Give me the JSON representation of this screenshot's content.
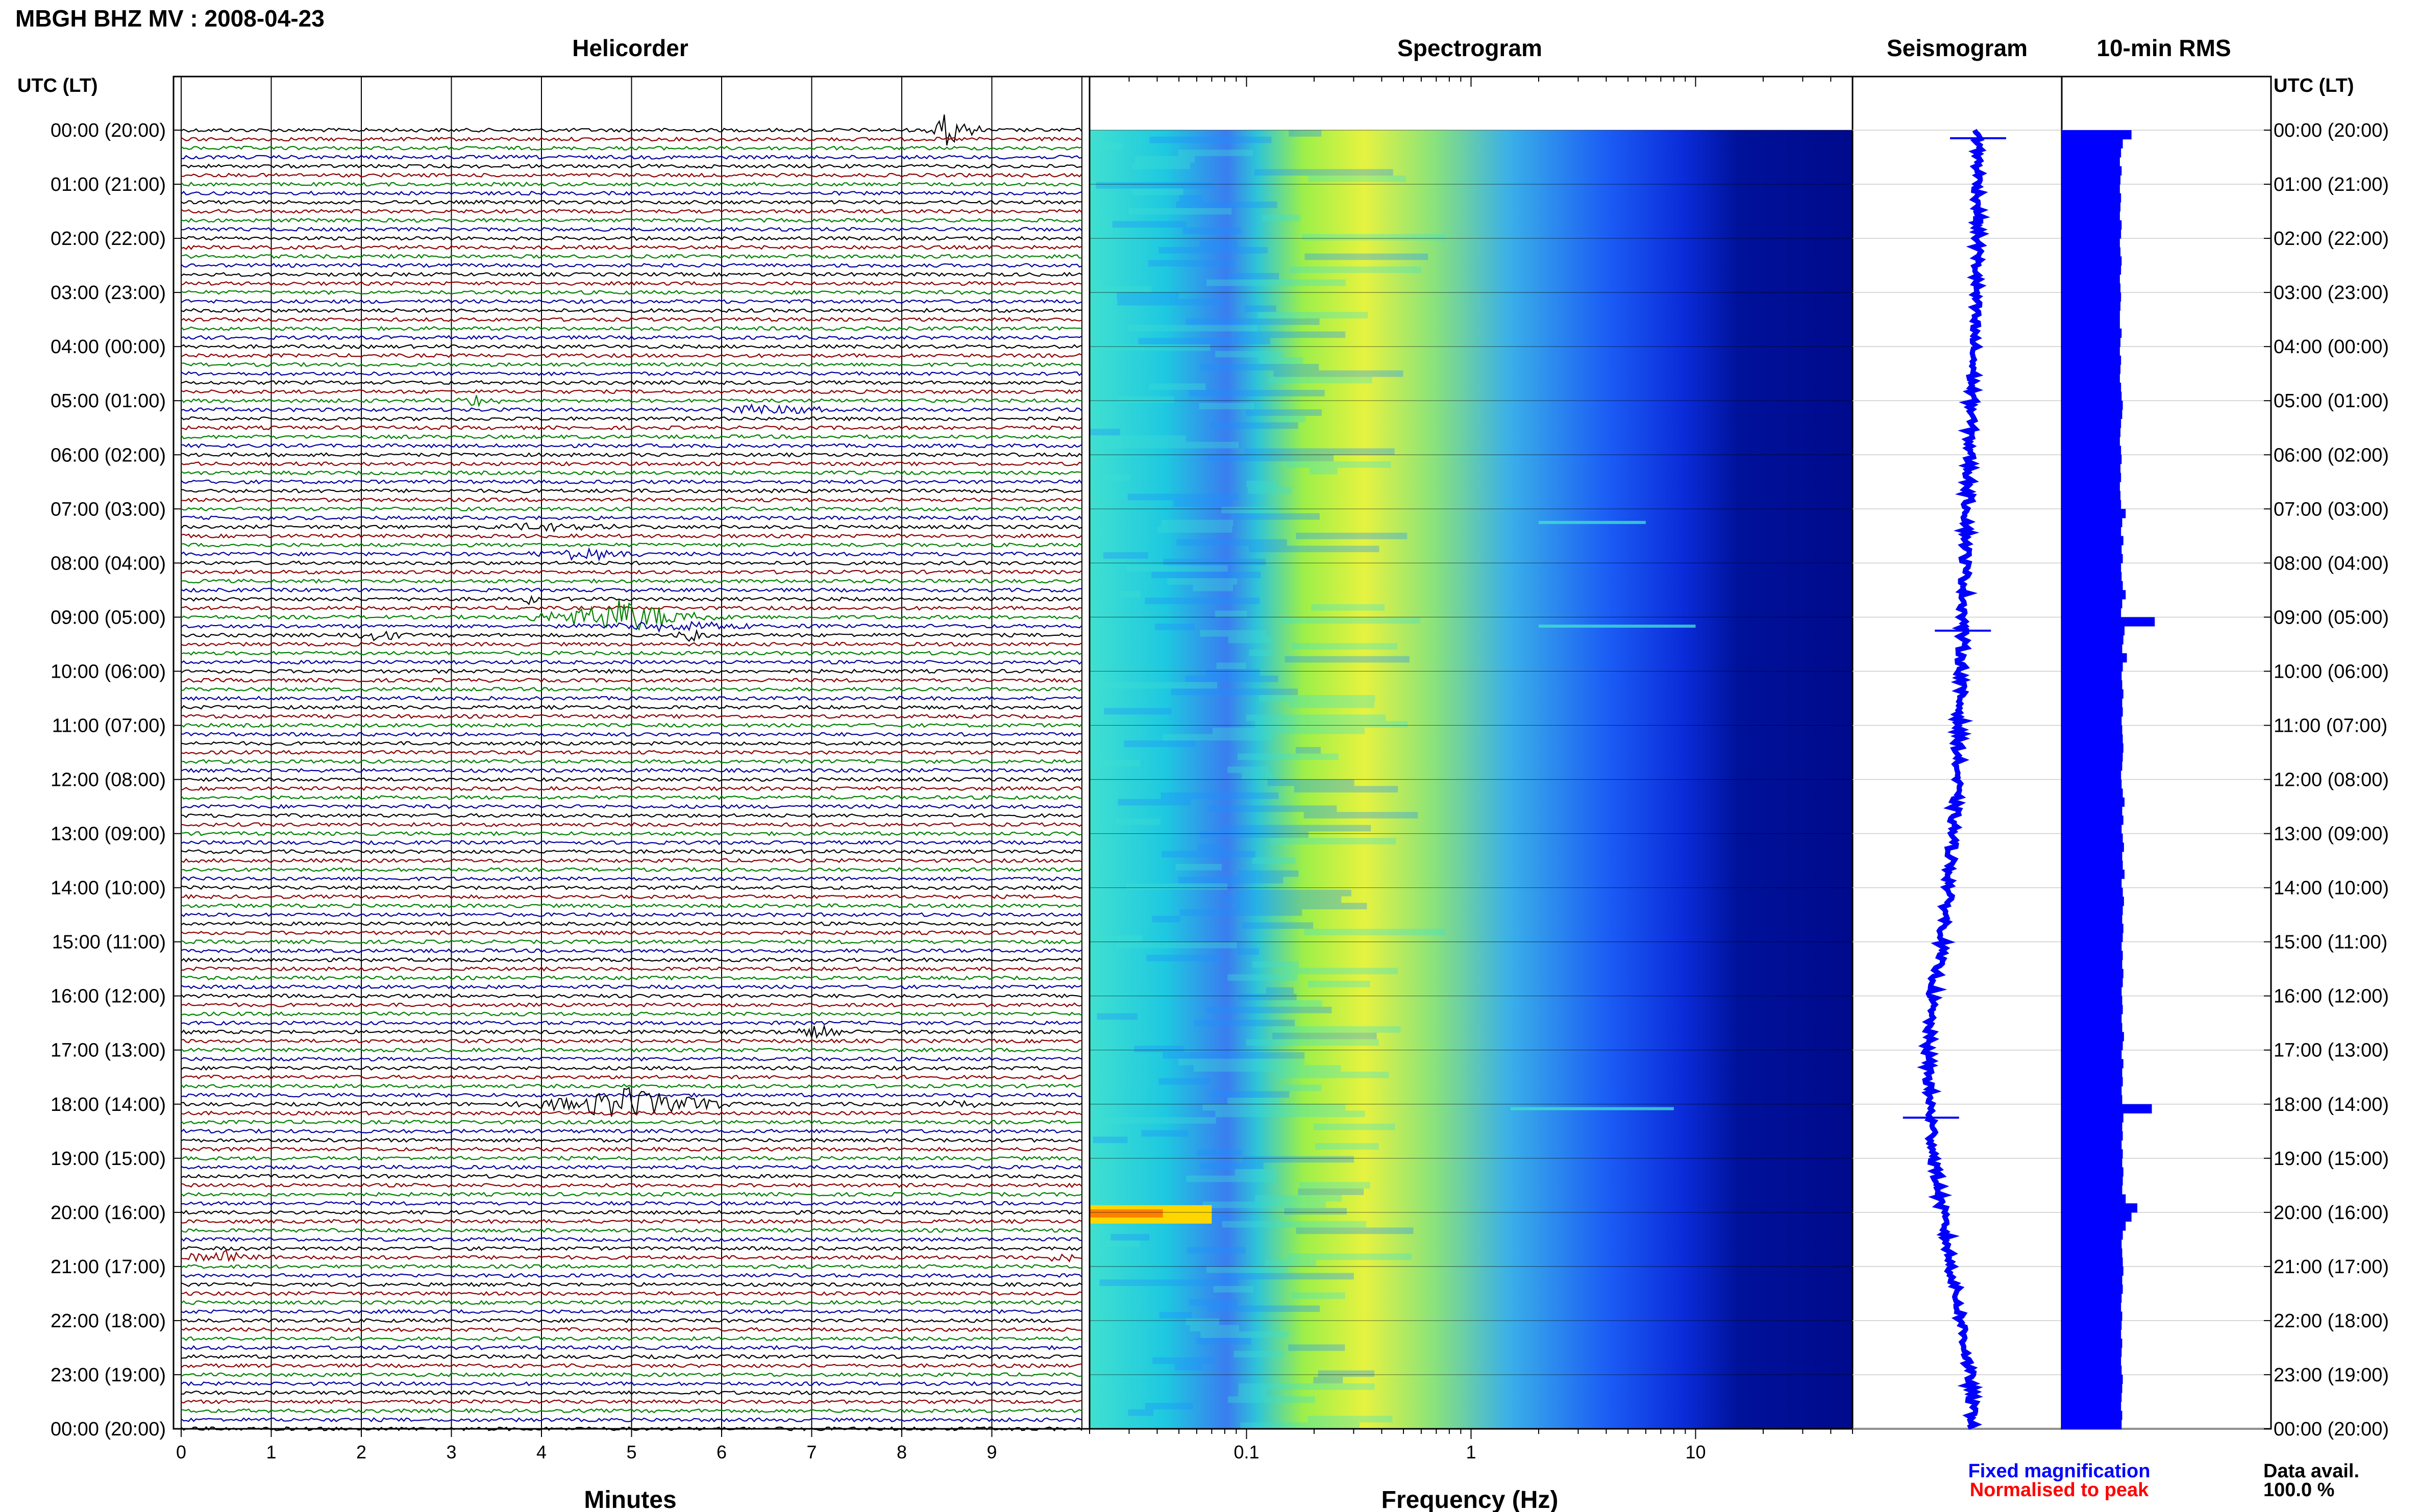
{
  "header": {
    "title": "MBGH BHZ MV : 2008-04-23"
  },
  "panels": {
    "helicorder": "Helicorder",
    "spectrogram": "Spectrogram",
    "seismogram": "Seismogram",
    "rms": "10-min RMS"
  },
  "axes": {
    "time_label": "UTC (LT)",
    "helicorder_xlabel": "Minutes",
    "spectrogram_xlabel": "Frequency (Hz)"
  },
  "legend": {
    "fixed": "Fixed magnification",
    "normalised": "Normalised to peak",
    "fixed_color": "#0000ff",
    "normalised_color": "#ff0000"
  },
  "data_avail": {
    "label": "Data avail.",
    "value": "100.0 %"
  },
  "colors": {
    "trace_cycle": [
      "#000000",
      "#8b0000",
      "#008000",
      "#0000a0"
    ],
    "rms_bar": "#0000ff",
    "spectrogram_scale": [
      "#00008b",
      "#0000ff",
      "#1e90ff",
      "#40e0d0",
      "#adff2f",
      "#ffff00",
      "#ff0000"
    ]
  },
  "chart_data": [
    {
      "type": "line",
      "name": "helicorder",
      "x_ticks": [
        "0",
        "1",
        "2",
        "3",
        "4",
        "5",
        "6",
        "7",
        "8",
        "9"
      ],
      "xlim": [
        0,
        10
      ],
      "row_minutes": 10,
      "rows": 145,
      "y_tick_labels": [
        "00:00 (20:00)",
        "01:00 (21:00)",
        "02:00 (22:00)",
        "03:00 (23:00)",
        "04:00 (00:00)",
        "05:00 (01:00)",
        "06:00 (02:00)",
        "07:00 (03:00)",
        "08:00 (04:00)",
        "09:00 (05:00)",
        "10:00 (06:00)",
        "11:00 (07:00)",
        "12:00 (08:00)",
        "13:00 (09:00)",
        "14:00 (10:00)",
        "15:00 (11:00)",
        "16:00 (12:00)",
        "17:00 (13:00)",
        "18:00 (14:00)",
        "19:00 (15:00)",
        "20:00 (16:00)",
        "21:00 (17:00)",
        "22:00 (18:00)",
        "23:00 (19:00)",
        "00:00 (20:00)"
      ],
      "events": [
        {
          "row": 0,
          "minute": 8.5,
          "amplitude": 1.0,
          "duration_min": 0.3
        },
        {
          "row": 0,
          "minute": 8.75,
          "amplitude": 0.5,
          "duration_min": 0.2
        },
        {
          "row": 30,
          "minute": 3.3,
          "amplitude": 0.3,
          "duration_min": 0.5
        },
        {
          "row": 31,
          "minute": 6.5,
          "amplitude": 0.35,
          "duration_min": 1.0
        },
        {
          "row": 44,
          "minute": 4.0,
          "amplitude": 0.3,
          "duration_min": 1.2
        },
        {
          "row": 47,
          "minute": 4.5,
          "amplitude": 0.35,
          "duration_min": 1.1
        },
        {
          "row": 52,
          "minute": 3.9,
          "amplitude": 0.3,
          "duration_min": 0.3
        },
        {
          "row": 54,
          "minute": 4.9,
          "amplitude": 1.0,
          "duration_min": 1.4
        },
        {
          "row": 55,
          "minute": 5.5,
          "amplitude": 0.35,
          "duration_min": 1.5
        },
        {
          "row": 56,
          "minute": 2.2,
          "amplitude": 0.4,
          "duration_min": 0.4
        },
        {
          "row": 56,
          "minute": 5.7,
          "amplitude": 0.35,
          "duration_min": 0.4
        },
        {
          "row": 100,
          "minute": 7.1,
          "amplitude": 0.45,
          "duration_min": 0.4
        },
        {
          "row": 108,
          "minute": 8.7,
          "amplitude": 0.3,
          "duration_min": 0.5
        },
        {
          "row": 108,
          "minute": 5.0,
          "amplitude": 1.0,
          "duration_min": 1.5
        },
        {
          "row": 125,
          "minute": 0.5,
          "amplitude": 0.4,
          "duration_min": 1.0
        },
        {
          "row": 125,
          "minute": 9.8,
          "amplitude": 0.3,
          "duration_min": 0.3
        }
      ]
    },
    {
      "type": "heatmap",
      "name": "spectrogram",
      "x_scale": "log",
      "xlim": [
        0.02,
        50
      ],
      "x_ticks": [
        "0.1",
        "1",
        "10"
      ],
      "xlabel": "Frequency (Hz)",
      "peak_band_hz": [
        0.2,
        0.6
      ],
      "notable": [
        {
          "time_utc": "20:00",
          "freq_hz": [
            0.02,
            0.07
          ],
          "level": "high"
        },
        {
          "time_utc": "18:05",
          "freq_hz": [
            1.5,
            8
          ],
          "level": "line"
        },
        {
          "time_utc": "09:10",
          "freq_hz": [
            2,
            10
          ],
          "level": "line"
        },
        {
          "time_utc": "07:15",
          "freq_hz": [
            2,
            6
          ],
          "level": "line"
        }
      ]
    },
    {
      "type": "line",
      "name": "seismogram",
      "description_values": "downsampled 24-hour trace, offset drift",
      "samples_utc_hours": [
        0,
        2,
        4,
        6,
        8,
        10,
        12,
        14,
        15,
        16,
        17,
        18,
        19,
        20,
        21,
        22,
        23,
        24
      ],
      "offset": [
        0.6,
        0.6,
        0.58,
        0.56,
        0.54,
        0.52,
        0.5,
        0.46,
        0.43,
        0.38,
        0.36,
        0.37,
        0.39,
        0.43,
        0.47,
        0.52,
        0.56,
        0.58
      ],
      "spikes_utc_hours": [
        0.15,
        9.25,
        18.25
      ]
    },
    {
      "type": "bar",
      "name": "rms",
      "orientation": "horizontal",
      "interval_minutes": 10,
      "values": [
        1.2,
        1.05,
        1.02,
        1.0,
        1.03,
        1.01,
        1.0,
        1.02,
        1.01,
        1.0,
        1.03,
        1.02,
        1.0,
        1.01,
        1.03,
        1.02,
        1.0,
        1.01,
        1.02,
        1.01,
        1.0,
        1.0,
        1.03,
        1.01,
        1.0,
        1.02,
        1.01,
        1.0,
        1.02,
        1.03,
        1.05,
        1.04,
        1.02,
        1.01,
        1.0,
        1.02,
        1.03,
        1.01,
        1.02,
        1.0,
        1.01,
        1.02,
        1.1,
        1.04,
        1.02,
        1.06,
        1.03,
        1.05,
        1.02,
        1.03,
        1.05,
        1.1,
        1.04,
        1.02,
        1.6,
        1.08,
        1.06,
        1.04,
        1.12,
        1.05,
        1.03,
        1.04,
        1.06,
        1.04,
        1.05,
        1.03,
        1.04,
        1.05,
        1.06,
        1.05,
        1.04,
        1.02,
        1.03,
        1.05,
        1.08,
        1.04,
        1.06,
        1.03,
        1.05,
        1.07,
        1.04,
        1.05,
        1.08,
        1.03,
        1.05,
        1.07,
        1.05,
        1.04,
        1.06,
        1.05,
        1.03,
        1.05,
        1.04,
        1.06,
        1.05,
        1.03,
        1.04,
        1.05,
        1.03,
        1.04,
        1.07,
        1.05,
        1.03,
        1.06,
        1.04,
        1.05,
        1.03,
        1.04,
        1.55,
        1.06,
        1.04,
        1.05,
        1.03,
        1.05,
        1.04,
        1.06,
        1.05,
        1.04,
        1.1,
        1.3,
        1.2,
        1.1,
        1.05,
        1.03,
        1.04,
        1.05,
        1.06,
        1.04,
        1.05,
        1.03,
        1.02,
        1.04,
        1.03,
        1.02,
        1.04,
        1.03,
        1.02,
        1.03,
        1.05,
        1.04,
        1.03,
        1.02,
        1.04,
        1.03
      ]
    }
  ]
}
